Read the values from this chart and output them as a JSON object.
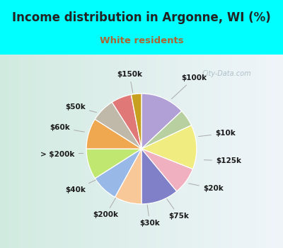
{
  "title": "Income distribution in Argonne, WI (%)",
  "subtitle": "White residents",
  "background_color": "#00ffff",
  "chart_bg_left": "#d0ede0",
  "chart_bg_right": "#e8f0f8",
  "title_color": "#222222",
  "subtitle_color": "#aa6633",
  "label_color": "#1a1a1a",
  "watermark": "City-Data.com",
  "labels_clockwise": [
    "$100k",
    "$10k",
    "$125k",
    "$20k",
    "$75k",
    "$30k",
    "$200k",
    "$40k",
    "> $200k",
    "$60k",
    "$50k",
    "$150k"
  ],
  "sizes_clockwise": [
    13,
    5,
    13,
    8,
    11,
    8,
    8,
    9,
    9,
    7,
    6,
    3
  ],
  "colors_clockwise": [
    "#b0a0d5",
    "#b8d0a0",
    "#f0ec80",
    "#f0b0c0",
    "#8080c8",
    "#f8c898",
    "#98b8e8",
    "#c0e870",
    "#f0a850",
    "#c0b8a8",
    "#e07878",
    "#c8a020"
  ],
  "startangle": 90
}
